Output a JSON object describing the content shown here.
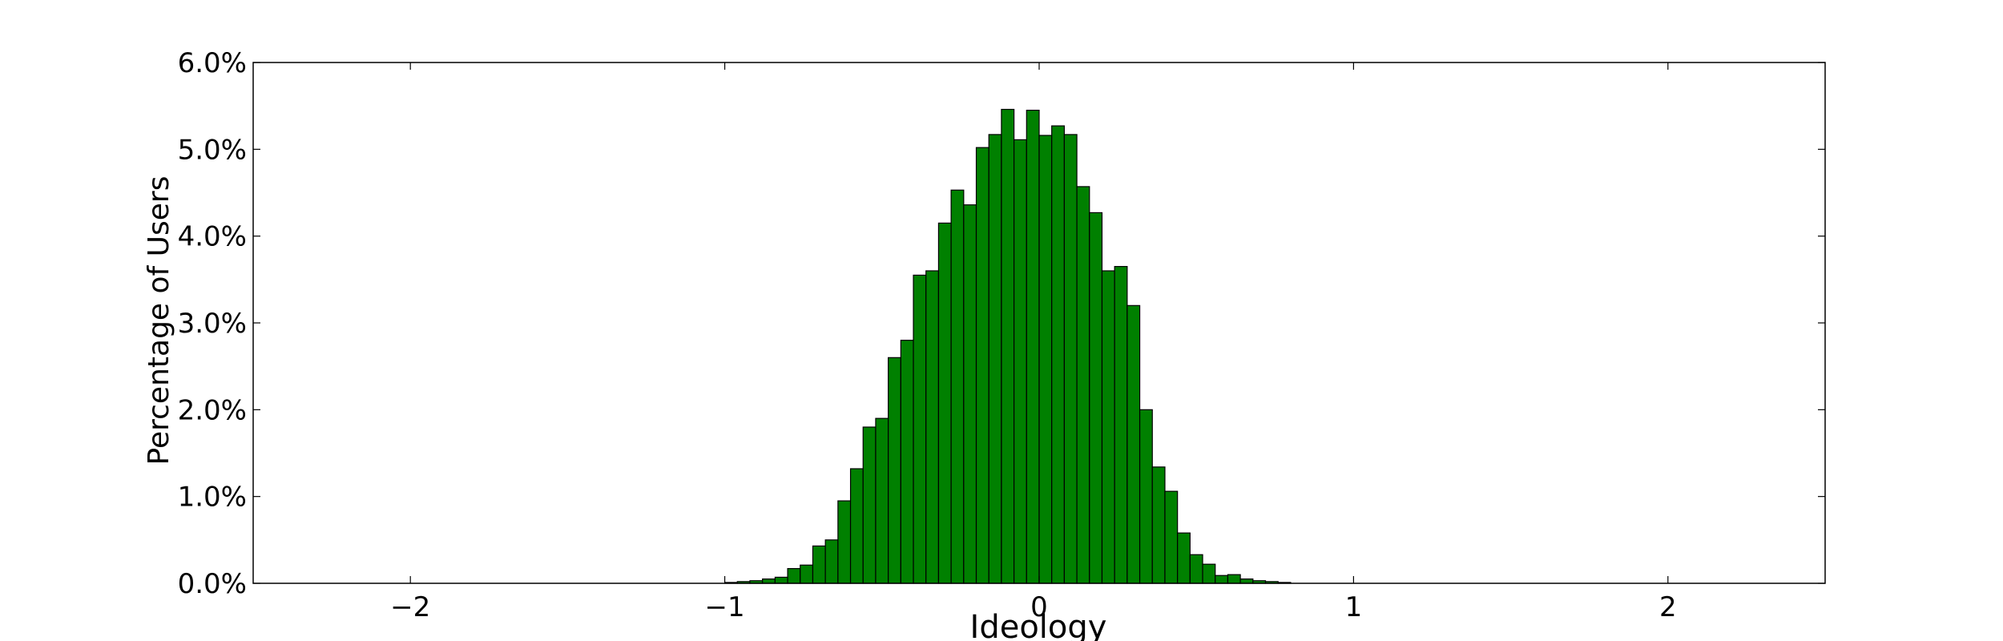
{
  "chart_data": {
    "type": "bar",
    "subtype": "histogram",
    "title": "",
    "xlabel": "Ideology",
    "ylabel": "Percentage of Users",
    "xlim": [
      -2.5,
      2.5
    ],
    "ylim": [
      0,
      6.0
    ],
    "x_ticks": [
      -2,
      -1,
      0,
      1,
      2
    ],
    "x_tick_labels": [
      "−2",
      "−1",
      "0",
      "1",
      "2"
    ],
    "y_ticks": [
      0,
      1,
      2,
      3,
      4,
      5,
      6
    ],
    "y_tick_labels": [
      "0.0%",
      "1.0%",
      "2.0%",
      "3.0%",
      "4.0%",
      "5.0%",
      "6.0%"
    ],
    "bin_width": 0.04,
    "bin_starts": [
      -1.0,
      -0.96,
      -0.92,
      -0.88,
      -0.84,
      -0.8,
      -0.76,
      -0.72,
      -0.68,
      -0.64,
      -0.6,
      -0.56,
      -0.52,
      -0.48,
      -0.44,
      -0.4,
      -0.36,
      -0.32,
      -0.28,
      -0.24,
      -0.2,
      -0.16,
      -0.12,
      -0.08,
      -0.04,
      0.0,
      0.04,
      0.08,
      0.12,
      0.16,
      0.2,
      0.24,
      0.28,
      0.32,
      0.36,
      0.4,
      0.44,
      0.48,
      0.52,
      0.56,
      0.6,
      0.64,
      0.68,
      0.72,
      0.76
    ],
    "values": [
      0.01,
      0.02,
      0.03,
      0.05,
      0.07,
      0.17,
      0.21,
      0.43,
      0.5,
      0.95,
      1.32,
      1.8,
      1.9,
      2.6,
      2.8,
      3.55,
      3.6,
      4.15,
      4.53,
      4.36,
      5.02,
      5.17,
      5.46,
      5.11,
      5.45,
      5.16,
      5.27,
      5.17,
      4.57,
      4.27,
      3.6,
      3.65,
      3.2,
      2.0,
      1.34,
      1.06,
      0.58,
      0.33,
      0.22,
      0.09,
      0.1,
      0.05,
      0.03,
      0.02,
      0.01
    ],
    "bar_color": "#008000",
    "edge_color": "#000000",
    "grid": false,
    "legend": "none"
  }
}
